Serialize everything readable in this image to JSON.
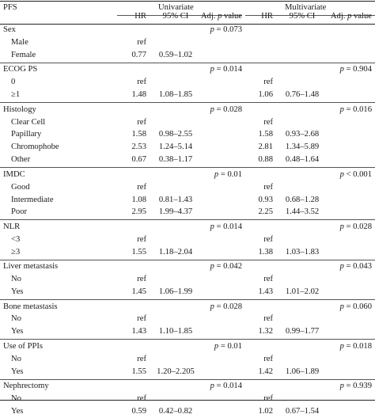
{
  "header": {
    "pfs": "PFS",
    "univariate": "Univariate",
    "multivariate": "Multivariate",
    "hr": "HR",
    "ci": "95% CI",
    "adj_pre": "Adj.",
    "adj_p": "p",
    "adj_post": "value"
  },
  "groups": [
    {
      "title": "Sex",
      "u_p": "= 0.073",
      "m_p": "",
      "rows": [
        {
          "label": "Male",
          "u_hr": "ref",
          "u_ci": "",
          "m_hr": "",
          "m_ci": ""
        },
        {
          "label": "Female",
          "u_hr": "0.77",
          "u_ci": "0.59–1.02",
          "m_hr": "",
          "m_ci": ""
        }
      ]
    },
    {
      "title": "ECOG PS",
      "u_p": "= 0.014",
      "m_p": "= 0.904",
      "rows": [
        {
          "label": "0",
          "u_hr": "ref",
          "u_ci": "",
          "m_hr": "ref",
          "m_ci": ""
        },
        {
          "label": "≥1",
          "u_hr": "1.48",
          "u_ci": "1.08–1.85",
          "m_hr": "1.06",
          "m_ci": "0.76–1.48"
        }
      ]
    },
    {
      "title": "Histology",
      "u_p": "= 0.028",
      "m_p": "= 0.016",
      "rows": [
        {
          "label": "Clear Cell",
          "u_hr": "ref",
          "u_ci": "",
          "m_hr": "ref",
          "m_ci": ""
        },
        {
          "label": "Papillary",
          "u_hr": "1.58",
          "u_ci": "0.98–2.55",
          "m_hr": "1.58",
          "m_ci": "0.93–2.68"
        },
        {
          "label": "Chromophobe",
          "u_hr": "2.53",
          "u_ci": "1.24–5.14",
          "m_hr": "2.81",
          "m_ci": "1.34–5.89"
        },
        {
          "label": "Other",
          "u_hr": "0.67",
          "u_ci": "0.38–1.17",
          "m_hr": "0.88",
          "m_ci": "0.48–1.64"
        }
      ]
    },
    {
      "title": "IMDC",
      "u_p": "= 0.01",
      "m_p": "< 0.001",
      "rows": [
        {
          "label": "Good",
          "u_hr": "ref",
          "u_ci": "",
          "m_hr": "ref",
          "m_ci": ""
        },
        {
          "label": "Intermediate",
          "u_hr": "1.08",
          "u_ci": "0.81–1.43",
          "m_hr": "0.93",
          "m_ci": "0.68–1.28"
        },
        {
          "label": "Poor",
          "u_hr": "2.95",
          "u_ci": "1.99–4.37",
          "m_hr": "2.25",
          "m_ci": "1.44–3.52"
        }
      ]
    },
    {
      "title": "NLR",
      "u_p": "= 0.014",
      "m_p": "= 0.028",
      "rows": [
        {
          "label": "<3",
          "u_hr": "ref",
          "u_ci": "",
          "m_hr": "ref",
          "m_ci": ""
        },
        {
          "label": "≥3",
          "u_hr": "1.55",
          "u_ci": "1.18–2.04",
          "m_hr": "1.38",
          "m_ci": "1.03–1.83"
        }
      ]
    },
    {
      "title": "Liver metastasis",
      "u_p": "= 0.042",
      "m_p": "= 0.043",
      "rows": [
        {
          "label": "No",
          "u_hr": "ref",
          "u_ci": "",
          "m_hr": "ref",
          "m_ci": ""
        },
        {
          "label": "Yes",
          "u_hr": "1.45",
          "u_ci": "1.06–1.99",
          "m_hr": "1.43",
          "m_ci": "1.01–2.02"
        }
      ]
    },
    {
      "title": "Bone metastasis",
      "u_p": "= 0.028",
      "m_p": "= 0.060",
      "rows": [
        {
          "label": "No",
          "u_hr": "ref",
          "u_ci": "",
          "m_hr": "ref",
          "m_ci": ""
        },
        {
          "label": "Yes",
          "u_hr": "1.43",
          "u_ci": "1.10–1.85",
          "m_hr": "1.32",
          "m_ci": "0.99–1.77"
        }
      ]
    },
    {
      "title": "Use of PPIs",
      "u_p": "= 0.01",
      "m_p": "= 0.018",
      "rows": [
        {
          "label": "No",
          "u_hr": "ref",
          "u_ci": "",
          "m_hr": "ref",
          "m_ci": ""
        },
        {
          "label": "Yes",
          "u_hr": "1.55",
          "u_ci": "1.20–2.205",
          "m_hr": "1.42",
          "m_ci": "1.06–1.89"
        }
      ]
    },
    {
      "title": "Nephrectomy",
      "u_p": "= 0.014",
      "m_p": "= 0.939",
      "rows": [
        {
          "label": "No",
          "u_hr": "ref",
          "u_ci": "",
          "m_hr": "ref",
          "m_ci": ""
        },
        {
          "label": "Yes",
          "u_hr": "0.59",
          "u_ci": "0.42–0.82",
          "m_hr": "1.02",
          "m_ci": "0.67–1.54"
        }
      ]
    }
  ]
}
